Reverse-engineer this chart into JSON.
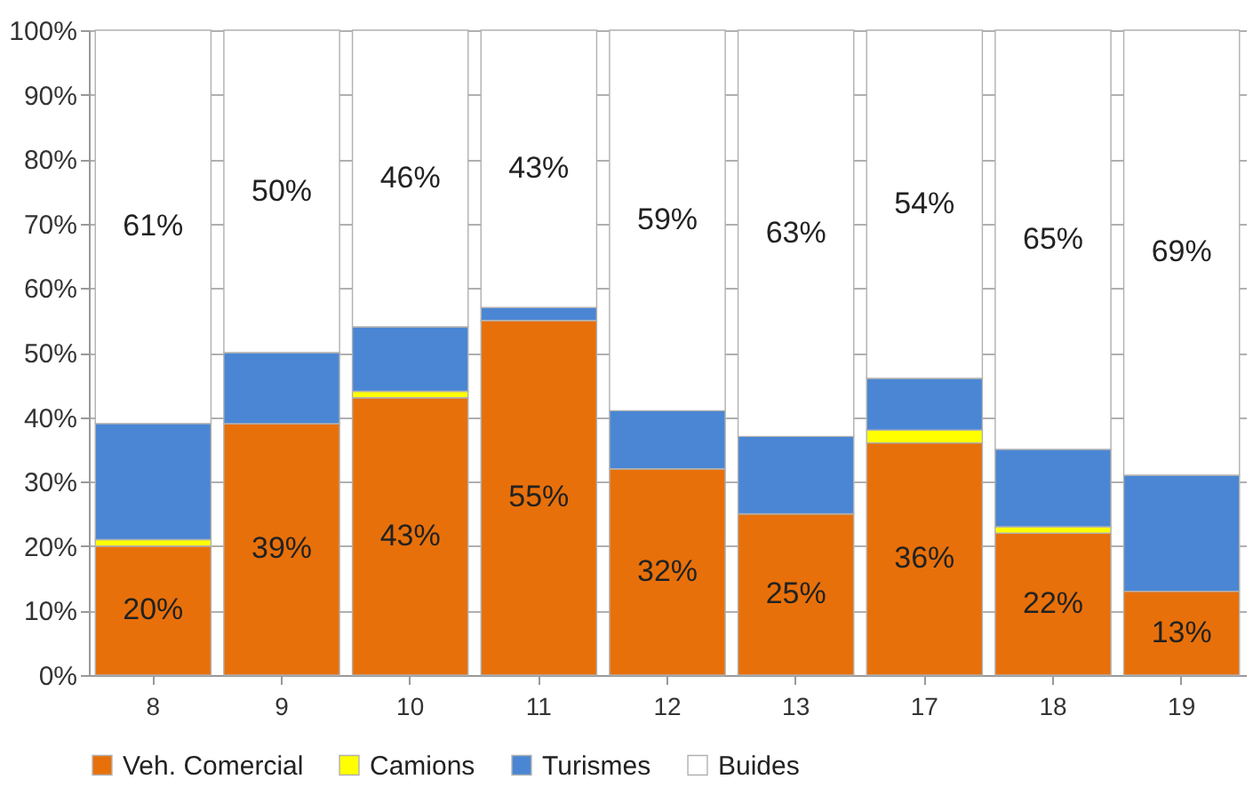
{
  "chart_data": {
    "type": "bar",
    "stacked": true,
    "categories": [
      "8",
      "9",
      "10",
      "11",
      "12",
      "13",
      "17",
      "18",
      "19"
    ],
    "ylim": [
      0,
      100
    ],
    "yticks": [
      {
        "value": 0,
        "label": "0%"
      },
      {
        "value": 10,
        "label": "10%"
      },
      {
        "value": 20,
        "label": "20%"
      },
      {
        "value": 30,
        "label": "30%"
      },
      {
        "value": 40,
        "label": "40%"
      },
      {
        "value": 50,
        "label": "50%"
      },
      {
        "value": 60,
        "label": "60%"
      },
      {
        "value": 70,
        "label": "70%"
      },
      {
        "value": 80,
        "label": "80%"
      },
      {
        "value": 90,
        "label": "90%"
      },
      {
        "value": 100,
        "label": "100%"
      }
    ],
    "grid": "y",
    "legend": "bottom",
    "series": [
      {
        "name": "Veh. Comercial",
        "color": "#e8700a",
        "values": [
          20,
          39,
          43,
          55,
          32,
          25,
          36,
          22,
          13
        ],
        "value_labels": [
          "20%",
          "39%",
          "43%",
          "55%",
          "32%",
          "25%",
          "36%",
          "22%",
          "13%"
        ]
      },
      {
        "name": "Camions",
        "color": "#ffff00",
        "values": [
          1,
          0,
          1,
          0,
          0,
          0,
          2,
          1,
          0
        ]
      },
      {
        "name": "Turismes",
        "color": "#4a86d4",
        "values": [
          18,
          11,
          10,
          2,
          9,
          12,
          8,
          12,
          18
        ]
      },
      {
        "name": "Buides",
        "color": "#ffffff",
        "values": [
          61,
          50,
          46,
          43,
          59,
          63,
          54,
          65,
          69
        ],
        "value_labels": [
          "61%",
          "50%",
          "46%",
          "43%",
          "59%",
          "63%",
          "54%",
          "65%",
          "69%"
        ]
      }
    ]
  }
}
